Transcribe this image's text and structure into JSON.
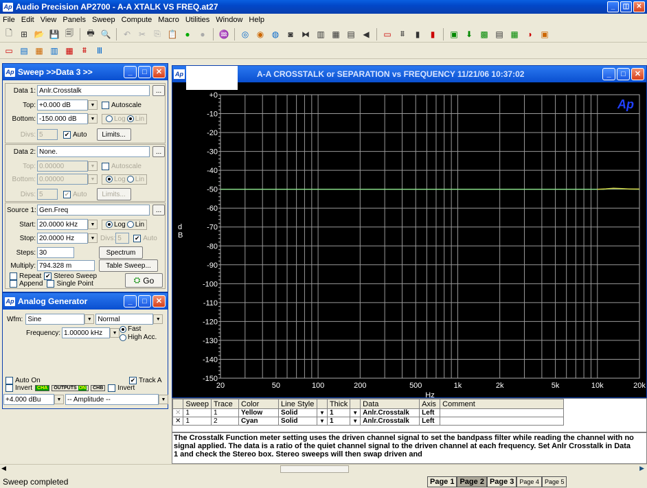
{
  "window": {
    "title": "Audio Precision AP2700 - A-A XTALK VS FREQ.at27",
    "app_icon": "Ap",
    "controls": [
      "_",
      "◫",
      "✕"
    ]
  },
  "menu": [
    "File",
    "Edit",
    "View",
    "Panels",
    "Sweep",
    "Compute",
    "Macro",
    "Utilities",
    "Window",
    "Help"
  ],
  "sweep_panel": {
    "title": "Sweep >>Data 3 >>",
    "data1": {
      "label": "Data 1:",
      "value": "Anlr.Crosstalk",
      "top_label": "Top:",
      "top": "+0.000  dB",
      "autoscale": "Autoscale",
      "bottom_label": "Bottom:",
      "bottom": "-150.000 dB",
      "log": "Log",
      "lin": "Lin",
      "divs_label": "Divs:",
      "divs": "5",
      "auto": "Auto",
      "limits": "Limits..."
    },
    "data2": {
      "label": "Data 2:",
      "value": "None.",
      "top_label": "Top:",
      "top": "0.00000",
      "autoscale": "Autoscale",
      "bottom_label": "Bottom:",
      "bottom": "0.00000",
      "log": "Log",
      "lin": "Lin",
      "divs_label": "Divs:",
      "divs": "5",
      "auto": "Auto",
      "limits": "Limits..."
    },
    "source1": {
      "label": "Source 1:",
      "value": "Gen.Freq",
      "start_label": "Start:",
      "start": "20.0000 kHz",
      "log": "Log",
      "lin": "Lin",
      "stop_label": "Stop:",
      "stop": "20.0000  Hz",
      "divs_label": "Divs:",
      "divs": "5",
      "auto": "Auto",
      "steps_label": "Steps:",
      "steps": "30",
      "spectrum": "Spectrum",
      "multiply_label": "Multiply:",
      "multiply": "794.328 m",
      "table_sweep": "Table Sweep..."
    },
    "repeat": "Repeat",
    "stereo": "Stereo Sweep",
    "append": "Append",
    "single": "Single Point",
    "go": "Go",
    "ellipsis": "..."
  },
  "gen_panel": {
    "title": "Analog Generator",
    "wfm_label": "Wfm:",
    "wfm": "Sine",
    "mode": "Normal",
    "freq_label": "Frequency:",
    "freq": "1.00000 kHz",
    "fast": "Fast",
    "high_acc": "High Acc.",
    "auto_on": "Auto On",
    "invert": "Invert",
    "cha": "CHA",
    "outputs": "OUTPUTS",
    "on": "ON",
    "chb": "CHB",
    "track_a": "Track A",
    "invert2": "Invert",
    "amplitude": "+4.000  dBu",
    "amp_label": "-- Amplitude --"
  },
  "graph": {
    "title": "A-A CROSSTALK or SEPARATION vs FREQUENCY    11/21/06 10:37:02",
    "logo": "Ap"
  },
  "chart_data": {
    "type": "line",
    "title": "A-A CROSSTALK or SEPARATION vs FREQUENCY    11/21/06 10:37:02",
    "xlabel": "Hz",
    "ylabel": "d B",
    "xscale": "log",
    "xlim": [
      20,
      20000
    ],
    "ylim": [
      -150,
      0
    ],
    "xticks": [
      {
        "v": 20,
        "t": "20"
      },
      {
        "v": 50,
        "t": "50"
      },
      {
        "v": 100,
        "t": "100"
      },
      {
        "v": 200,
        "t": "200"
      },
      {
        "v": 500,
        "t": "500"
      },
      {
        "v": 1000,
        "t": "1k"
      },
      {
        "v": 2000,
        "t": "2k"
      },
      {
        "v": 5000,
        "t": "5k"
      },
      {
        "v": 10000,
        "t": "10k"
      },
      {
        "v": 20000,
        "t": "20k"
      }
    ],
    "yticks": [
      {
        "v": 0,
        "t": "+0"
      },
      {
        "v": -10,
        "t": "-10"
      },
      {
        "v": -20,
        "t": "-20"
      },
      {
        "v": -30,
        "t": "-30"
      },
      {
        "v": -40,
        "t": "-40"
      },
      {
        "v": -50,
        "t": "-50"
      },
      {
        "v": -60,
        "t": "-60"
      },
      {
        "v": -70,
        "t": "-70"
      },
      {
        "v": -80,
        "t": "-80"
      },
      {
        "v": -90,
        "t": "-90"
      },
      {
        "v": -100,
        "t": "-100"
      },
      {
        "v": -110,
        "t": "-110"
      },
      {
        "v": -120,
        "t": "-120"
      },
      {
        "v": -130,
        "t": "-130"
      },
      {
        "v": -140,
        "t": "-140"
      },
      {
        "v": -150,
        "t": "-150"
      }
    ],
    "grid": true,
    "series": [
      {
        "color": "#88dd88",
        "x": [
          20,
          1000,
          10000,
          11000,
          13000,
          15000,
          20000
        ],
        "y": [
          -50,
          -50,
          -50,
          -50,
          -49.6,
          -49.8,
          -50
        ]
      },
      {
        "color": "#cccc44",
        "x": [
          10000,
          11500,
          13000,
          15000,
          17000,
          20000
        ],
        "y": [
          -50,
          -49.8,
          -49.5,
          -49.7,
          -49.9,
          -49.9
        ]
      }
    ]
  },
  "trace_table": {
    "headers": [
      "",
      "Sweep",
      "Trace",
      "Color",
      "Line Style",
      "",
      "Thick",
      "",
      "Data",
      "Axis",
      "Comment"
    ],
    "rows": [
      {
        "mark": "✕",
        "sweep": "1",
        "trace": "1",
        "color": "Yellow",
        "style": "Solid",
        "thick": "1",
        "data": "Anlr.Crosstalk",
        "axis": "Left"
      },
      {
        "mark": "✕",
        "sweep": "1",
        "trace": "2",
        "color": "Cyan",
        "style": "Solid",
        "thick": "1",
        "data": "Anlr.Crosstalk",
        "axis": "Left"
      }
    ]
  },
  "notes": "The Crosstalk Function meter setting uses the driven channel signal to set the bandpass filter while reading the channel with no signal applied.  The data is a ratio of the quiet channel signal to the driven channel at each frequency.  Set Anlr Crosstalk in Data 1 and check the Stereo box.  Stereo sweeps will then swap driven and",
  "status": "Sweep completed",
  "pages": [
    "Page 1",
    "Page 2",
    "Page 3",
    "Page 4",
    "Page 5"
  ]
}
